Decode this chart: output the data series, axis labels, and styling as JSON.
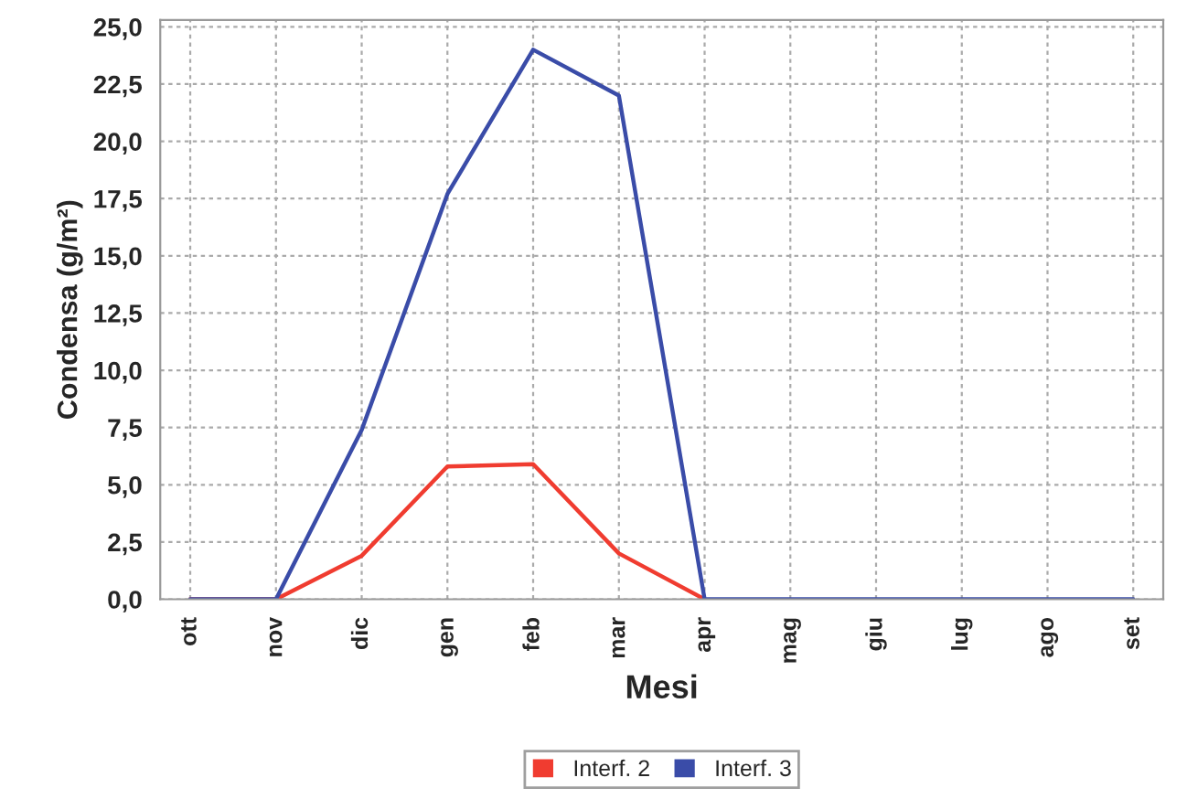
{
  "chart_data": {
    "type": "line",
    "xlabel": "Mesi",
    "ylabel": "Condensa (g/m²)",
    "categories": [
      "ott",
      "nov",
      "dic",
      "gen",
      "feb",
      "mar",
      "apr",
      "mag",
      "giu",
      "lug",
      "ago",
      "set"
    ],
    "series": [
      {
        "name": "Interf. 2",
        "color": "#f03c30",
        "values": [
          0,
          0,
          1.9,
          5.8,
          5.9,
          2.0,
          0,
          null,
          null,
          null,
          null,
          null
        ]
      },
      {
        "name": "Interf. 3",
        "color": "#3a4ca8",
        "values": [
          0,
          0,
          7.4,
          17.7,
          24.0,
          22.0,
          0,
          0,
          0,
          0,
          0,
          0
        ]
      }
    ],
    "ylim": [
      0,
      25.3
    ],
    "yticks": [
      {
        "value": 0,
        "label": "0,0"
      },
      {
        "value": 2.5,
        "label": "2,5"
      },
      {
        "value": 5,
        "label": "5,0"
      },
      {
        "value": 7.5,
        "label": "7,5"
      },
      {
        "value": 10,
        "label": "10,0"
      },
      {
        "value": 12.5,
        "label": "12,5"
      },
      {
        "value": 15,
        "label": "15,0"
      },
      {
        "value": 17.5,
        "label": "17,5"
      },
      {
        "value": 20,
        "label": "20,0"
      },
      {
        "value": 22.5,
        "label": "22,5"
      },
      {
        "value": 25,
        "label": "25,0"
      }
    ],
    "grid": true,
    "legend": "bottom",
    "marker": "none",
    "line_style": "solid"
  }
}
